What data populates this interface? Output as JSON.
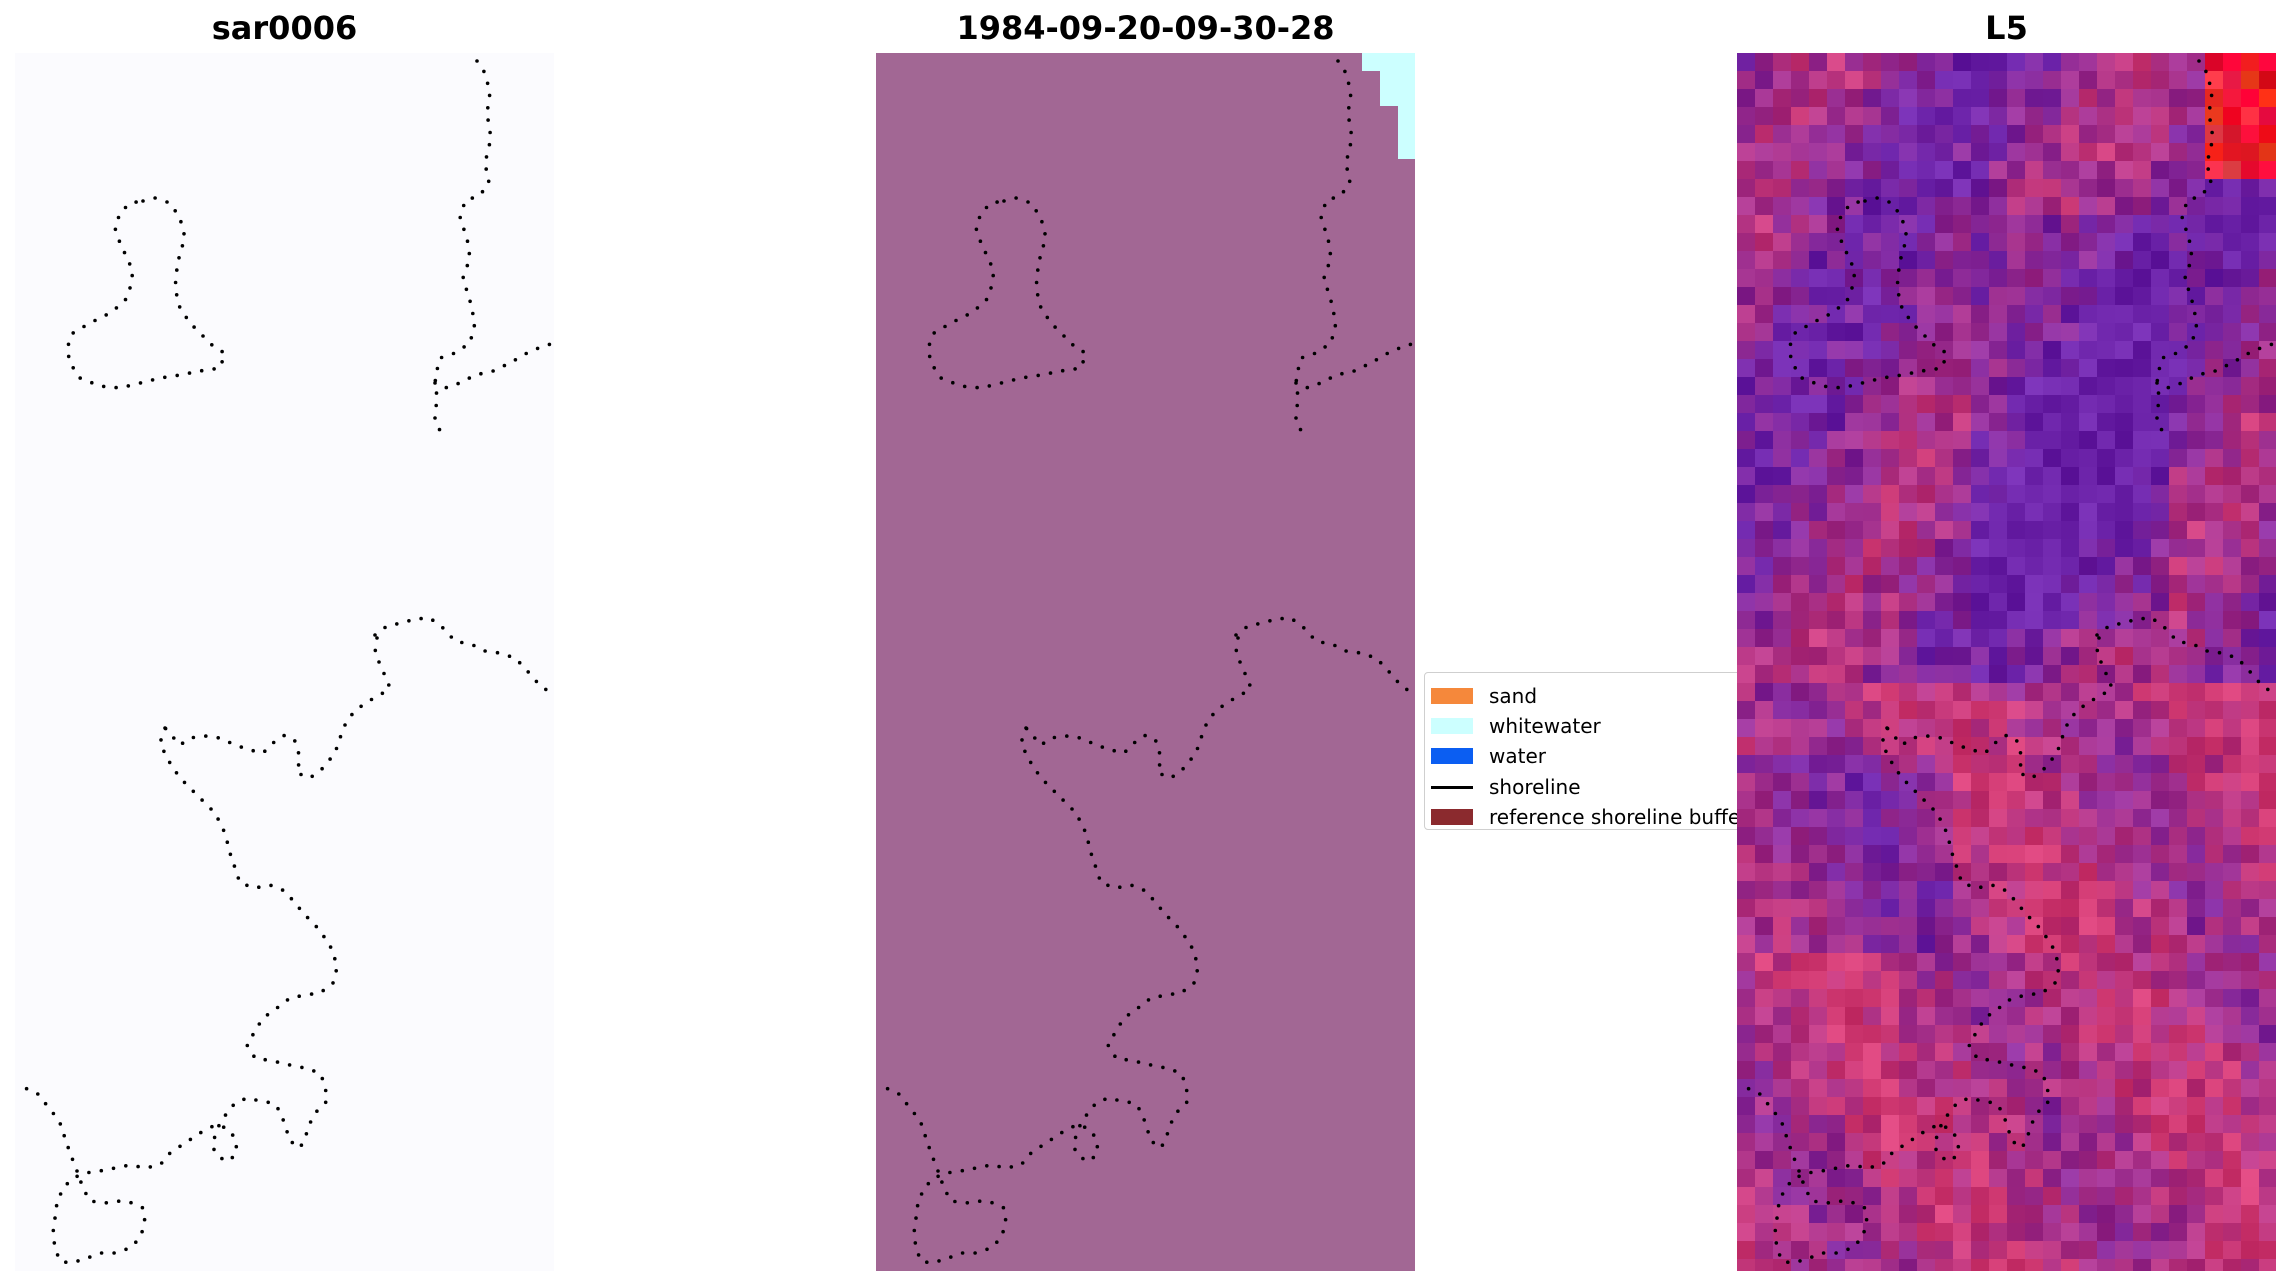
{
  "panels": [
    {
      "id": "sar",
      "title": "sar0006"
    },
    {
      "id": "classified",
      "title": "1984-09-20-09-30-28"
    },
    {
      "id": "l5",
      "title": "L5"
    }
  ],
  "legend": {
    "entries": [
      {
        "label": "sand",
        "color": "#f5883b",
        "kind": "patch"
      },
      {
        "label": "whitewater",
        "color": "#ccffff",
        "kind": "patch"
      },
      {
        "label": "water",
        "color": "#0b5ef2",
        "kind": "patch"
      },
      {
        "label": "shoreline",
        "color": "#000000",
        "kind": "line"
      },
      {
        "label": "reference shoreline buffer",
        "color": "#8b2a2e",
        "kind": "patch"
      }
    ]
  },
  "colors": {
    "sar_background": "#fbfbfe",
    "classified_background": "#a26794",
    "whitewater": "#ccffff",
    "l5_purple": "#6b22a8",
    "l5_pink": "#d13a73",
    "shoreline_dots": "#000000"
  }
}
